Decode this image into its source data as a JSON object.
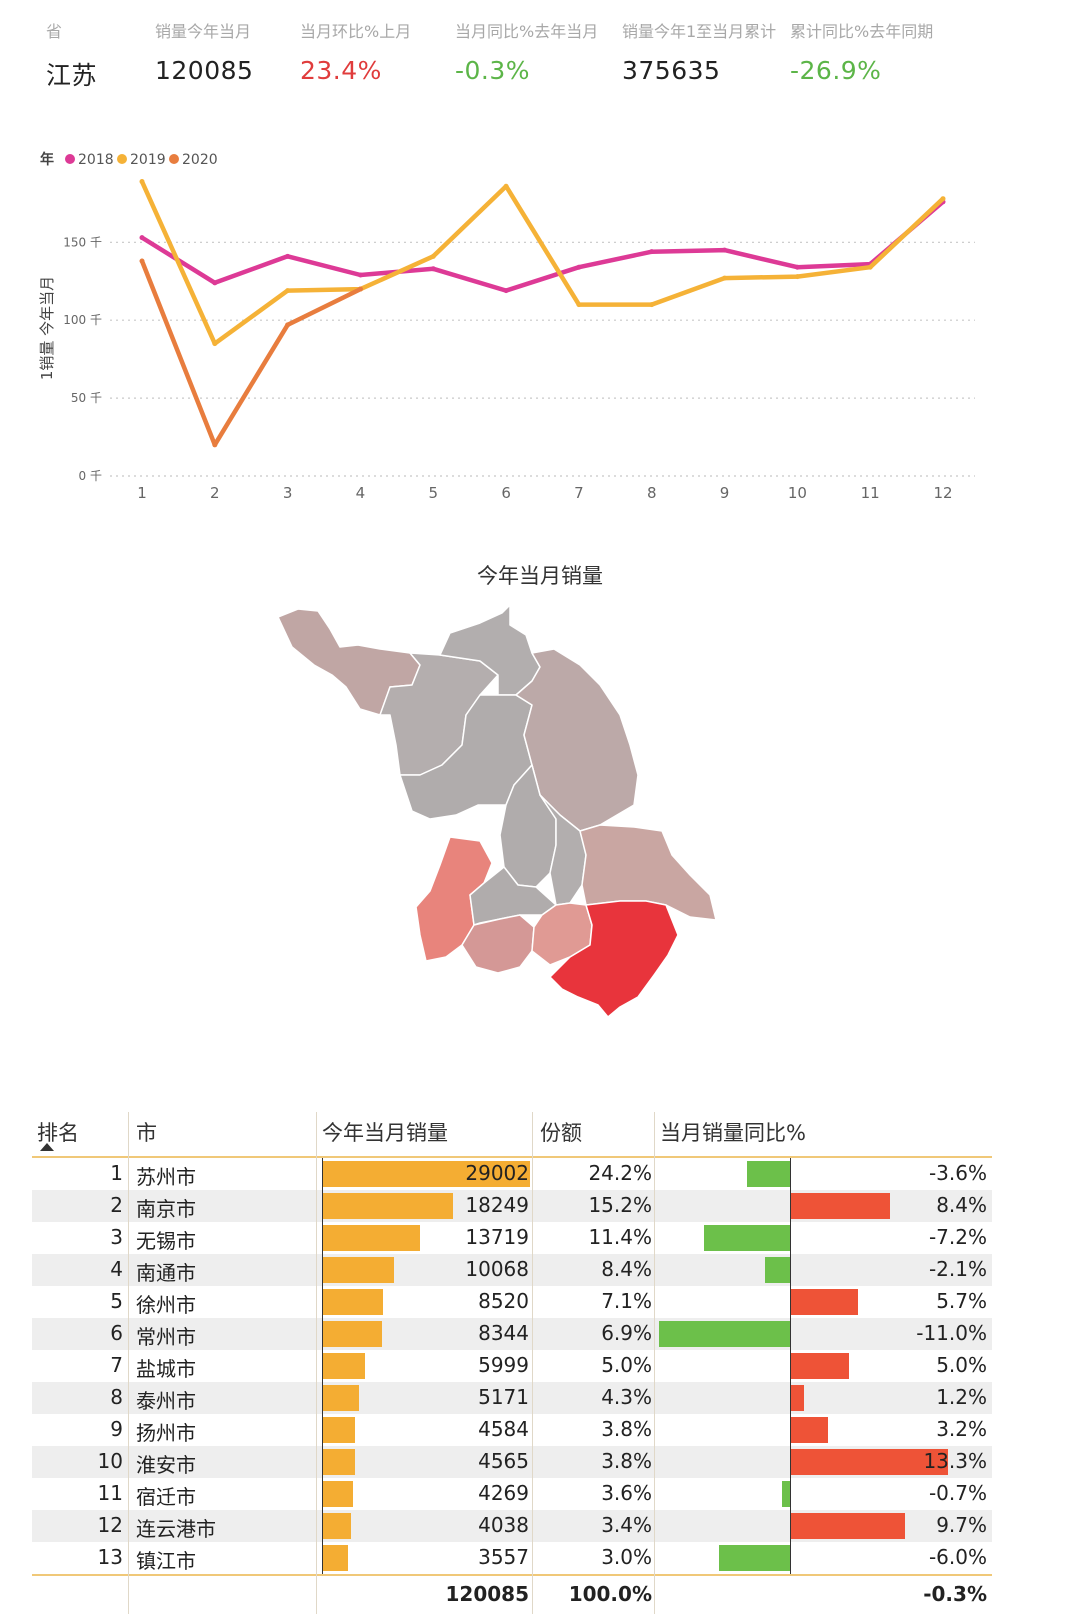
{
  "kpis": [
    {
      "label": "省",
      "value": "江苏",
      "color": "#222222"
    },
    {
      "label": "销量今年当月",
      "value": "120085",
      "color": "#222222"
    },
    {
      "label": "当月环比%上月",
      "value": "23.4%",
      "color": "#e03c3c"
    },
    {
      "label": "当月同比%去年当月",
      "value": "-0.3%",
      "color": "#5cb548"
    },
    {
      "label": "销量今年1至当月累计",
      "value": "375635",
      "color": "#222222"
    },
    {
      "label": "累计同比%去年同期",
      "value": "-26.9%",
      "color": "#5cb548"
    }
  ],
  "chart_data": {
    "type": "line",
    "legend_title": "年",
    "legend_position": "top-left",
    "ylabel": "1销量 今年当月",
    "xlabel": "",
    "x": [
      1,
      2,
      3,
      4,
      5,
      6,
      7,
      8,
      9,
      10,
      11,
      12
    ],
    "ylim": [
      0,
      190
    ],
    "yticks": [
      {
        "value": 0,
        "label": "0 千"
      },
      {
        "value": 50,
        "label": "50 千"
      },
      {
        "value": 100,
        "label": "100 千"
      },
      {
        "value": 150,
        "label": "150 千"
      }
    ],
    "grid": "dotted-horizontal",
    "series": [
      {
        "name": "2018",
        "color": "#dd3a96",
        "values": [
          153,
          124,
          141,
          129,
          133,
          119,
          134,
          144,
          145,
          134,
          136,
          176
        ]
      },
      {
        "name": "2019",
        "color": "#f5b237",
        "values": [
          189,
          85,
          119,
          120,
          141,
          186,
          110,
          110,
          127,
          128,
          134,
          178
        ]
      },
      {
        "name": "2020",
        "color": "#e87d3e",
        "values": [
          138,
          20,
          97,
          120,
          null,
          null,
          null,
          null,
          null,
          null,
          null,
          null
        ]
      }
    ]
  },
  "map": {
    "title": "今年当月销量",
    "low_color": "#b0acac",
    "high_color": "#e8343c"
  },
  "table": {
    "headers": [
      "排名",
      "市",
      "今年当月销量",
      "份额",
      "当月销量同比%"
    ],
    "max_sales": 29002,
    "max_yoy_abs": 13.3,
    "rows": [
      {
        "rank": "1",
        "city": "苏州市",
        "sales": 29002,
        "sales_text": "29002",
        "share": "24.2%",
        "yoy": -3.6,
        "yoy_text": "-3.6%"
      },
      {
        "rank": "2",
        "city": "南京市",
        "sales": 18249,
        "sales_text": "18249",
        "share": "15.2%",
        "yoy": 8.4,
        "yoy_text": "8.4%"
      },
      {
        "rank": "3",
        "city": "无锡市",
        "sales": 13719,
        "sales_text": "13719",
        "share": "11.4%",
        "yoy": -7.2,
        "yoy_text": "-7.2%"
      },
      {
        "rank": "4",
        "city": "南通市",
        "sales": 10068,
        "sales_text": "10068",
        "share": "8.4%",
        "yoy": -2.1,
        "yoy_text": "-2.1%"
      },
      {
        "rank": "5",
        "city": "徐州市",
        "sales": 8520,
        "sales_text": "8520",
        "share": "7.1%",
        "yoy": 5.7,
        "yoy_text": "5.7%"
      },
      {
        "rank": "6",
        "city": "常州市",
        "sales": 8344,
        "sales_text": "8344",
        "share": "6.9%",
        "yoy": -11.0,
        "yoy_text": "-11.0%"
      },
      {
        "rank": "7",
        "city": "盐城市",
        "sales": 5999,
        "sales_text": "5999",
        "share": "5.0%",
        "yoy": 5.0,
        "yoy_text": "5.0%"
      },
      {
        "rank": "8",
        "city": "泰州市",
        "sales": 5171,
        "sales_text": "5171",
        "share": "4.3%",
        "yoy": 1.2,
        "yoy_text": "1.2%"
      },
      {
        "rank": "9",
        "city": "扬州市",
        "sales": 4584,
        "sales_text": "4584",
        "share": "3.8%",
        "yoy": 3.2,
        "yoy_text": "3.2%"
      },
      {
        "rank": "10",
        "city": "淮安市",
        "sales": 4565,
        "sales_text": "4565",
        "share": "3.8%",
        "yoy": 13.3,
        "yoy_text": "13.3%"
      },
      {
        "rank": "11",
        "city": "宿迁市",
        "sales": 4269,
        "sales_text": "4269",
        "share": "3.6%",
        "yoy": -0.7,
        "yoy_text": "-0.7%"
      },
      {
        "rank": "12",
        "city": "连云港市",
        "sales": 4038,
        "sales_text": "4038",
        "share": "3.4%",
        "yoy": 9.7,
        "yoy_text": "9.7%"
      },
      {
        "rank": "13",
        "city": "镇江市",
        "sales": 3557,
        "sales_text": "3557",
        "share": "3.0%",
        "yoy": -6.0,
        "yoy_text": "-6.0%"
      }
    ],
    "totals": {
      "sales": "120085",
      "share": "100.0%",
      "yoy": "-0.3%"
    },
    "colors": {
      "sales_bar": "#f4ad33",
      "positive": "#ee5337",
      "negative": "#6cc04a"
    }
  }
}
